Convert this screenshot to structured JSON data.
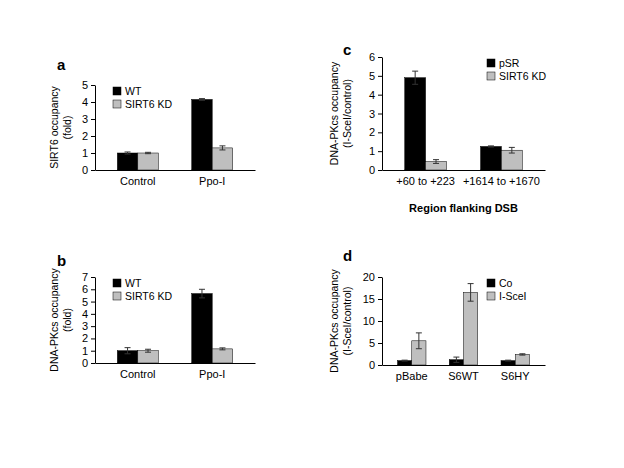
{
  "chart_data": [
    {
      "type": "bar",
      "title": "a",
      "y_label": [
        "SIRT6 occupancy",
        "(fold)"
      ],
      "categories": [
        "Control",
        "Ppo-I"
      ],
      "series": [
        {
          "name": "WT",
          "color": "#000000",
          "values": [
            1.0,
            4.15
          ],
          "errors": [
            0.06,
            0.05
          ]
        },
        {
          "name": "SIRT6 KD",
          "color": "#bfbfbf",
          "values": [
            1.0,
            1.3
          ],
          "errors": [
            0.04,
            0.12
          ]
        }
      ],
      "ylim": [
        0,
        5
      ],
      "yticks": [
        0,
        1,
        2,
        3,
        4,
        5
      ],
      "legend": "top-left"
    },
    {
      "type": "bar",
      "title": "b",
      "y_label": [
        "DNA-PKcs occupancy",
        "(fold)"
      ],
      "categories": [
        "Control",
        "Ppo-I"
      ],
      "series": [
        {
          "name": "WT",
          "color": "#000000",
          "values": [
            1.0,
            5.65
          ],
          "errors": [
            0.25,
            0.35
          ]
        },
        {
          "name": "SIRT6 KD",
          "color": "#bfbfbf",
          "values": [
            1.0,
            1.15
          ],
          "errors": [
            0.12,
            0.08
          ]
        }
      ],
      "ylim": [
        0,
        7
      ],
      "yticks": [
        0,
        1,
        2,
        3,
        4,
        5,
        6,
        7
      ],
      "legend": "top-left"
    },
    {
      "type": "bar",
      "title": "c",
      "y_label": [
        "DNA-PKcs occupancy",
        "(I-SceI/control)"
      ],
      "x_label": "Region flanking DSB",
      "categories": [
        "+60 to +223",
        "+1614 to +1670"
      ],
      "series": [
        {
          "name": "pSR",
          "color": "#000000",
          "values": [
            4.9,
            1.25
          ],
          "errors": [
            0.35,
            0.03
          ]
        },
        {
          "name": "SIRT6 KD",
          "color": "#bfbfbf",
          "values": [
            0.45,
            1.05
          ],
          "errors": [
            0.1,
            0.15
          ]
        }
      ],
      "ylim": [
        0,
        6
      ],
      "yticks": [
        0,
        1,
        2,
        3,
        4,
        5,
        6
      ],
      "legend": "top-right"
    },
    {
      "type": "bar",
      "title": "d",
      "y_label": [
        "DNA-PKcs occupancy",
        "(I-SceI/control)"
      ],
      "categories": [
        "pBabe",
        "S6WT",
        "S6HY"
      ],
      "series": [
        {
          "name": "Co",
          "color": "#000000",
          "values": [
            1.0,
            1.2,
            1.0
          ],
          "errors": [
            0.1,
            0.6,
            0.1
          ]
        },
        {
          "name": "I-SceI",
          "color": "#bfbfbf",
          "values": [
            5.5,
            16.5,
            2.4
          ],
          "errors": [
            1.8,
            2.0,
            0.15
          ]
        }
      ],
      "ylim": [
        0,
        20
      ],
      "yticks": [
        0,
        5,
        10,
        15,
        20
      ],
      "legend": "top-right"
    }
  ]
}
